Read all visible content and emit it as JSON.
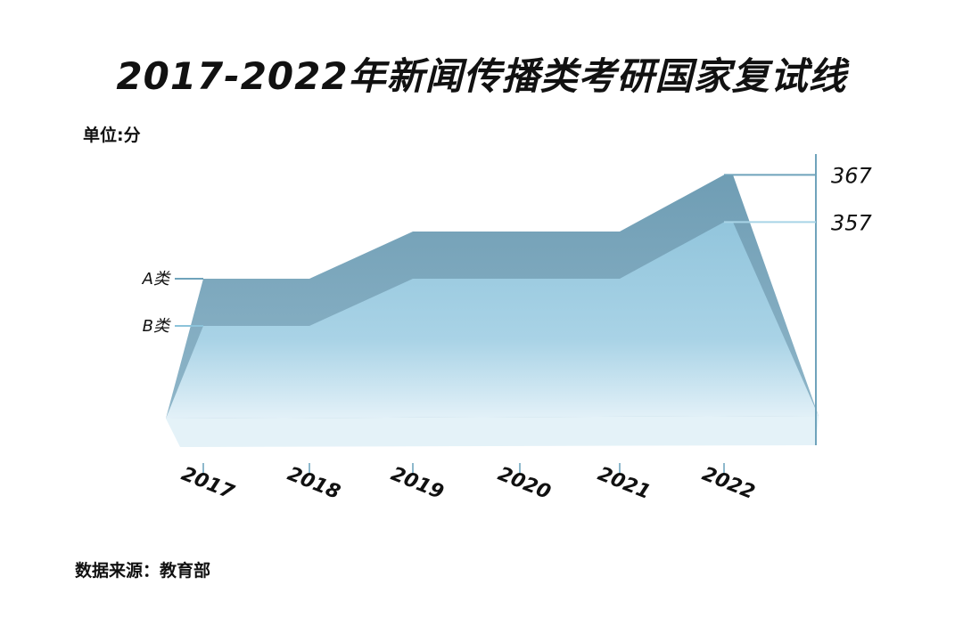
{
  "title": "2017-2022年新闻传播类考研国家复试线",
  "unit": "单位:分",
  "source": "数据来源：教育部",
  "colors": {
    "series_a": "#7ea8bd",
    "series_b": "#9ccbe0",
    "axis": "#6fa3bb"
  },
  "chart_data": {
    "type": "area",
    "title": "2017-2022年新闻传播类考研国家复试线",
    "categories": [
      "2017",
      "2018",
      "2019",
      "2020",
      "2021",
      "2022"
    ],
    "series": [
      {
        "name": "A类",
        "values": [
          345,
          345,
          355,
          355,
          355,
          367
        ]
      },
      {
        "name": "B类",
        "values": [
          335,
          335,
          345,
          345,
          345,
          357
        ]
      }
    ],
    "value_labels": [
      "367",
      "357"
    ],
    "ylim": [
      305,
      372
    ],
    "grid": false,
    "legend": "left, inline with series start"
  }
}
